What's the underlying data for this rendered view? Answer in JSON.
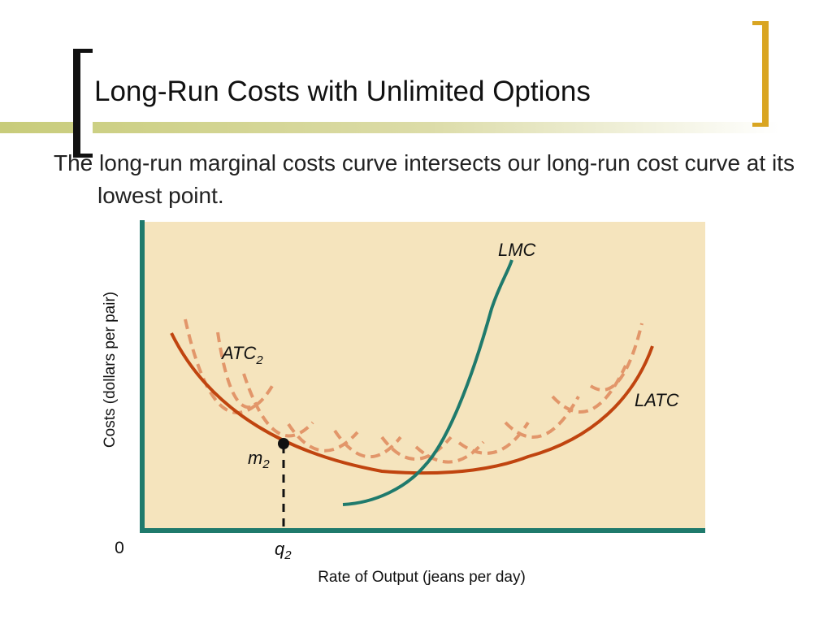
{
  "slide": {
    "title": "Long-Run Costs with Unlimited Options",
    "bullet": "The long-run marginal costs curve intersects our long-run cost curve at its lowest point."
  },
  "diagram": {
    "y_axis_label": "Costs (dollars per pair)",
    "x_axis_label": "Rate of Output (jeans per day)",
    "origin_label": "0",
    "curve_labels": {
      "lmc": "LMC",
      "latc": "LATC",
      "atc_main": "ATC",
      "atc_sub": "2"
    },
    "point_label": {
      "main": "m",
      "sub": "2"
    },
    "quantity_label": {
      "main": "q",
      "sub": "2"
    }
  },
  "colors": {
    "plot_background": "#f5e4bd",
    "axis": "#1f7a6c",
    "latc": "#c0440f",
    "atc_dashed": "#e2966a",
    "lmc": "#1f7a6c",
    "bracket_left": "#111111",
    "bracket_right": "#d9a522",
    "title_bar": "#c8cc7a"
  }
}
